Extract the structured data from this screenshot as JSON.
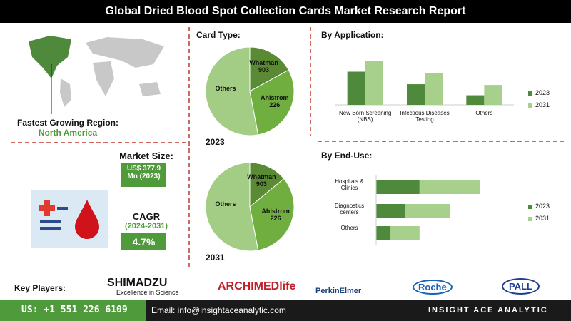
{
  "title": "Global Dried Blood Spot Collection Cards Market Research Report",
  "region": {
    "label": "Fastest Growing Region:",
    "value": "North America"
  },
  "market_size": {
    "label": "Market Size:",
    "value": "US$ 377.9 Mn (2023)"
  },
  "cagr": {
    "label": "CAGR",
    "period": "(2024-2031)",
    "value": "4.7%"
  },
  "key_players": {
    "label": "Key Players:",
    "companies": [
      "SHIMADZU",
      "Excellence in Science",
      "ARCHIMEDlife",
      "PerkinElmer",
      "Roche",
      "PALL"
    ]
  },
  "footer": {
    "phone": "US: +1 551 226 6109",
    "email": "Email: info@insightaceanalytic.com",
    "brand": "INSIGHT ACE ANALYTIC"
  },
  "chart_data": [
    {
      "type": "pie",
      "title": "Card Type:",
      "subtitle": "2023",
      "categories": [
        "Whatman 903",
        "Ahlstrom 226",
        "Others"
      ],
      "values": [
        17,
        30,
        53
      ],
      "colors": [
        "#5a8a34",
        "#6fae3f",
        "#a3cc85"
      ]
    },
    {
      "type": "pie",
      "subtitle": "2031",
      "categories": [
        "Whatman 903",
        "Ahlstrom 226",
        "Others"
      ],
      "values": [
        14,
        33,
        53
      ],
      "colors": [
        "#5a8a34",
        "#6fae3f",
        "#a3cc85"
      ]
    },
    {
      "type": "bar",
      "title": "By Application:",
      "categories": [
        "New Born Screening (NBS)",
        "Infectious Diseases Testing",
        "Others"
      ],
      "series": [
        {
          "name": "2023",
          "color": "#4f8a3c",
          "values": [
            45,
            28,
            13
          ]
        },
        {
          "name": "2031",
          "color": "#a8d08d",
          "values": [
            60,
            43,
            27
          ]
        }
      ]
    },
    {
      "type": "hbar",
      "title": "By End-Use:",
      "categories": [
        "Hospitals & Clinics",
        "Diagnostics centers",
        "Others"
      ],
      "series": [
        {
          "name": "2023",
          "color": "#4f8a3c",
          "values": [
            60,
            40,
            20
          ]
        },
        {
          "name": "2031",
          "color": "#a8d08d",
          "values": [
            83,
            62,
            40
          ]
        }
      ]
    }
  ]
}
